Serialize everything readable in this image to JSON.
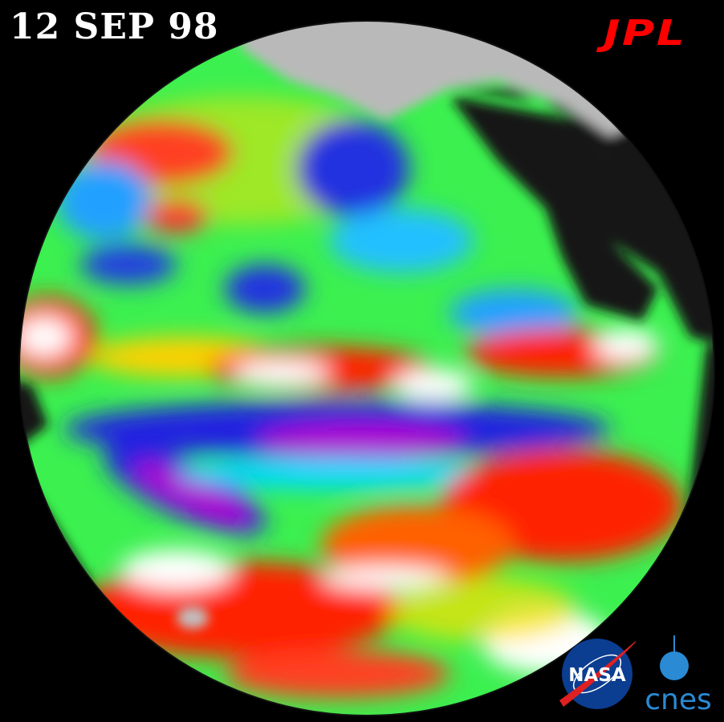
{
  "date_label": "12 SEP 98",
  "logos": {
    "jpl": "JPL",
    "nasa": "NASA",
    "cnes": "cnes"
  },
  "colors": {
    "background": "#000000",
    "land": "#141414",
    "ice": "#b9b9b9",
    "jpl_red": "#ff0000",
    "nasa_blue": "#0b3d91",
    "cnes_blue": "#2a8ad4"
  },
  "color_scale": [
    "#9b00c8",
    "#2020e0",
    "#00d8ff",
    "#30ff60",
    "#ffff00",
    "#ff2000",
    "#ffffff"
  ]
}
